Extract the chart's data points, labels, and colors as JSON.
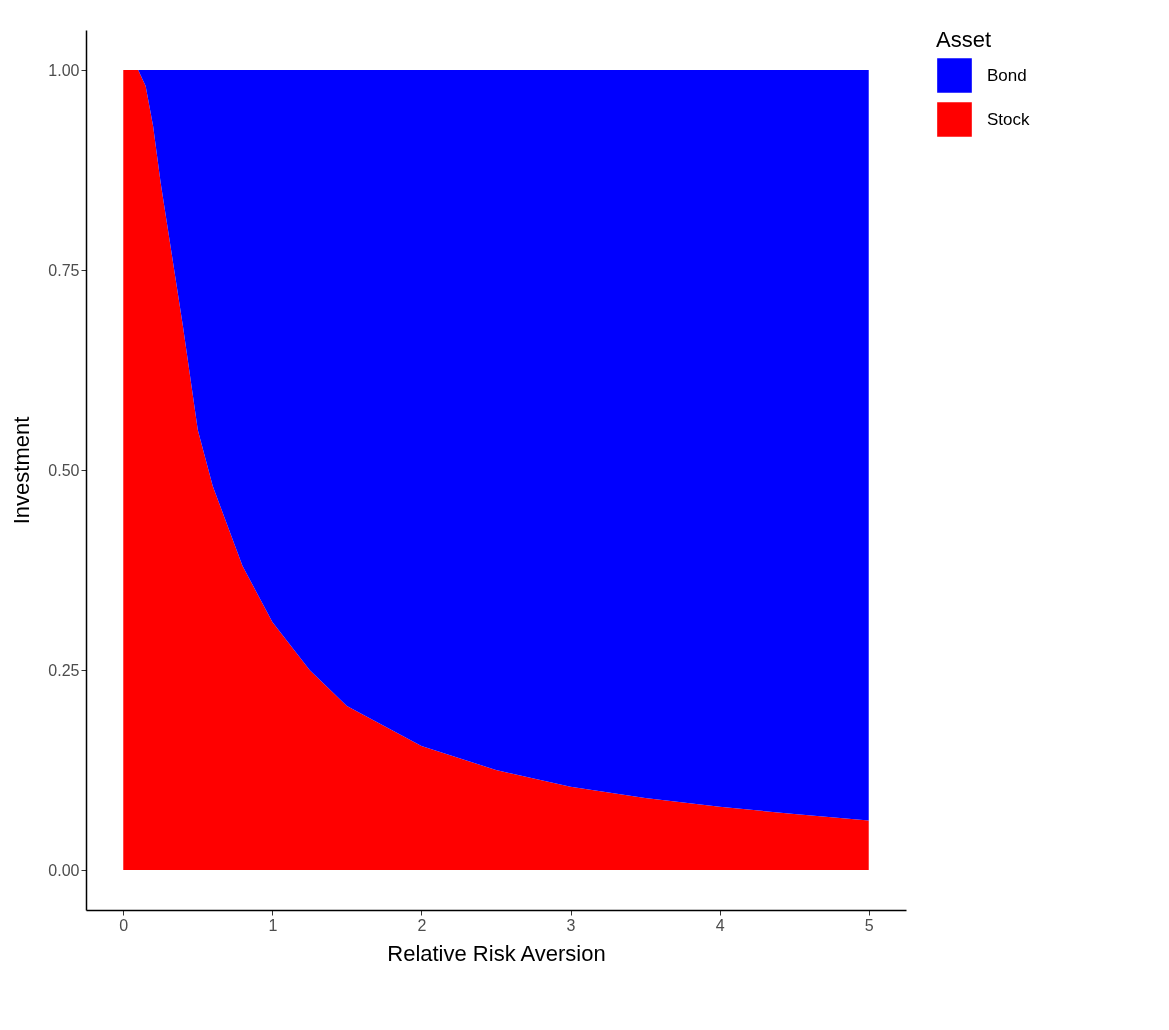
{
  "chart_data": {
    "type": "area",
    "stacked": true,
    "xlabel": "Relative Risk Aversion",
    "ylabel": "Investment",
    "legend_title": "Asset",
    "legend": "right",
    "grid": false,
    "x": [
      0,
      0.1,
      0.15,
      0.2,
      0.25,
      0.3,
      0.4,
      0.5,
      0.6,
      0.8,
      1,
      1.25,
      1.5,
      2,
      2.5,
      3,
      3.5,
      4,
      4.5,
      5
    ],
    "series": [
      {
        "name": "Stock",
        "color": "#ff0000",
        "values": [
          1,
          1,
          0.98,
          0.93,
          0.86,
          0.8,
          0.68,
          0.55,
          0.48,
          0.38,
          0.31,
          0.25,
          0.205,
          0.155,
          0.125,
          0.104,
          0.09,
          0.079,
          0.07,
          0.062
        ]
      },
      {
        "name": "Bond",
        "color": "#0000ff",
        "values": [
          0,
          0,
          0.02,
          0.07,
          0.14,
          0.2,
          0.32,
          0.45,
          0.52,
          0.62,
          0.69,
          0.75,
          0.795,
          0.845,
          0.875,
          0.896,
          0.91,
          0.921,
          0.93,
          0.938
        ]
      }
    ],
    "xlim": [
      -0.25,
      5.25
    ],
    "xticks": [
      0,
      1,
      2,
      3,
      4,
      5
    ],
    "ylim": [
      -0.05,
      1.05
    ],
    "yticks": [
      {
        "value": 0,
        "label": "0.00"
      },
      {
        "value": 0.25,
        "label": "0.25"
      },
      {
        "value": 0.5,
        "label": "0.50"
      },
      {
        "value": 0.75,
        "label": "0.75"
      },
      {
        "value": 1,
        "label": "1.00"
      }
    ]
  }
}
